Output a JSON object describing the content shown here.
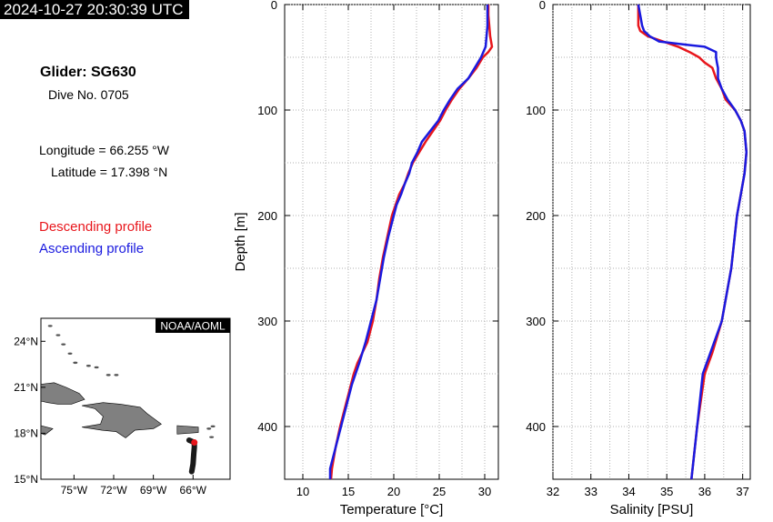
{
  "header": {
    "timestamp": "2024-10-27 20:30:39 UTC"
  },
  "info": {
    "glider": "Glider: SG630",
    "dive": "Dive No. 0705",
    "longitude": "Longitude = 66.255 °W",
    "latitude": "Latitude = 17.398 °N",
    "legend_descending": "Descending profile",
    "legend_ascending": "Ascending profile"
  },
  "colors": {
    "descending": "#e8161c",
    "ascending": "#1a1adf",
    "land": "#808080",
    "track": "#1a1a1a"
  },
  "map": {
    "credit": "NOAA/AOML",
    "lat_ticks": [
      "24°N",
      "21°N",
      "18°N",
      "15°N"
    ],
    "lon_ticks": [
      "75°W",
      "72°W",
      "69°W",
      "66°W"
    ],
    "lon_range": [
      -77.5,
      -63.2
    ],
    "lat_range": [
      15,
      25.5
    ],
    "track": [
      [
        -66.1,
        15.5
      ],
      [
        -66.0,
        16.0
      ],
      [
        -65.95,
        16.6
      ],
      [
        -65.9,
        17.1
      ],
      [
        -65.9,
        17.4
      ],
      [
        -66.3,
        17.55
      ]
    ],
    "position": [
      -65.9,
      17.4
    ]
  },
  "chart_data": [
    {
      "type": "line",
      "xlabel": "Temperature [°C]",
      "ylabel": "Depth [m]",
      "xlim": [
        8,
        31.5
      ],
      "ylim": [
        450,
        0
      ],
      "x_ticks": [
        10,
        15,
        20,
        25,
        30
      ],
      "y_ticks": [
        0,
        100,
        200,
        300,
        400
      ],
      "series": [
        {
          "name": "Descending profile",
          "color": "#e8161c",
          "depth": [
            0,
            10,
            20,
            30,
            40,
            45,
            50,
            60,
            70,
            80,
            90,
            100,
            110,
            120,
            130,
            140,
            150,
            160,
            170,
            180,
            190,
            200,
            220,
            240,
            260,
            280,
            300,
            320,
            340,
            350,
            360,
            380,
            400,
            420,
            440,
            450
          ],
          "values": [
            30.4,
            30.4,
            30.5,
            30.6,
            30.8,
            30.4,
            29.8,
            29.1,
            28.2,
            27.2,
            26.4,
            25.7,
            25.1,
            24.3,
            23.5,
            22.8,
            22.1,
            21.6,
            21.2,
            20.6,
            20.2,
            19.8,
            19.3,
            18.8,
            18.4,
            18.1,
            17.7,
            17.1,
            16.0,
            15.6,
            15.3,
            14.7,
            14.1,
            13.6,
            13.2,
            13.1
          ]
        },
        {
          "name": "Ascending profile",
          "color": "#1a1adf",
          "depth": [
            0,
            10,
            20,
            30,
            40,
            50,
            60,
            70,
            80,
            90,
            100,
            110,
            120,
            130,
            140,
            150,
            160,
            170,
            180,
            190,
            200,
            220,
            240,
            260,
            280,
            300,
            320,
            340,
            350,
            360,
            380,
            400,
            420,
            440,
            450
          ],
          "values": [
            30.3,
            30.3,
            30.3,
            30.2,
            30.1,
            29.6,
            28.9,
            28.2,
            27.0,
            26.2,
            25.5,
            24.9,
            24.0,
            23.1,
            22.6,
            22.0,
            21.7,
            21.2,
            20.8,
            20.3,
            20.0,
            19.4,
            18.9,
            18.5,
            18.1,
            17.5,
            16.9,
            16.2,
            15.8,
            15.4,
            14.8,
            14.2,
            13.6,
            13.0,
            13.0
          ]
        }
      ]
    },
    {
      "type": "line",
      "xlabel": "Salinity [PSU]",
      "ylabel": "",
      "xlim": [
        32,
        37.2
      ],
      "ylim": [
        450,
        0
      ],
      "x_ticks": [
        32,
        33,
        34,
        35,
        36,
        37
      ],
      "y_ticks": [
        0,
        100,
        200,
        300,
        400
      ],
      "series": [
        {
          "name": "Descending profile",
          "color": "#e8161c",
          "depth": [
            0,
            10,
            20,
            25,
            30,
            35,
            40,
            45,
            50,
            55,
            60,
            70,
            80,
            90,
            100,
            110,
            120,
            140,
            160,
            180,
            200,
            250,
            300,
            330,
            350,
            400,
            450
          ],
          "values": [
            34.25,
            34.25,
            34.25,
            34.3,
            34.5,
            34.9,
            35.3,
            35.6,
            35.85,
            36.0,
            36.2,
            36.3,
            36.45,
            36.55,
            36.8,
            36.95,
            37.05,
            37.1,
            37.05,
            36.95,
            36.85,
            36.7,
            36.45,
            36.2,
            36.0,
            35.8,
            35.65
          ]
        },
        {
          "name": "Ascending profile",
          "color": "#1a1adf",
          "depth": [
            0,
            10,
            20,
            25,
            30,
            35,
            38,
            40,
            45,
            50,
            55,
            60,
            70,
            80,
            90,
            100,
            110,
            120,
            140,
            160,
            180,
            200,
            250,
            300,
            330,
            350,
            400,
            450
          ],
          "values": [
            34.25,
            34.3,
            34.35,
            34.4,
            34.55,
            34.8,
            35.5,
            36.0,
            36.3,
            36.3,
            36.32,
            36.35,
            36.35,
            36.45,
            36.6,
            36.8,
            36.95,
            37.05,
            37.1,
            37.05,
            36.95,
            36.85,
            36.7,
            36.45,
            36.15,
            35.95,
            35.8,
            35.65
          ]
        }
      ]
    }
  ]
}
